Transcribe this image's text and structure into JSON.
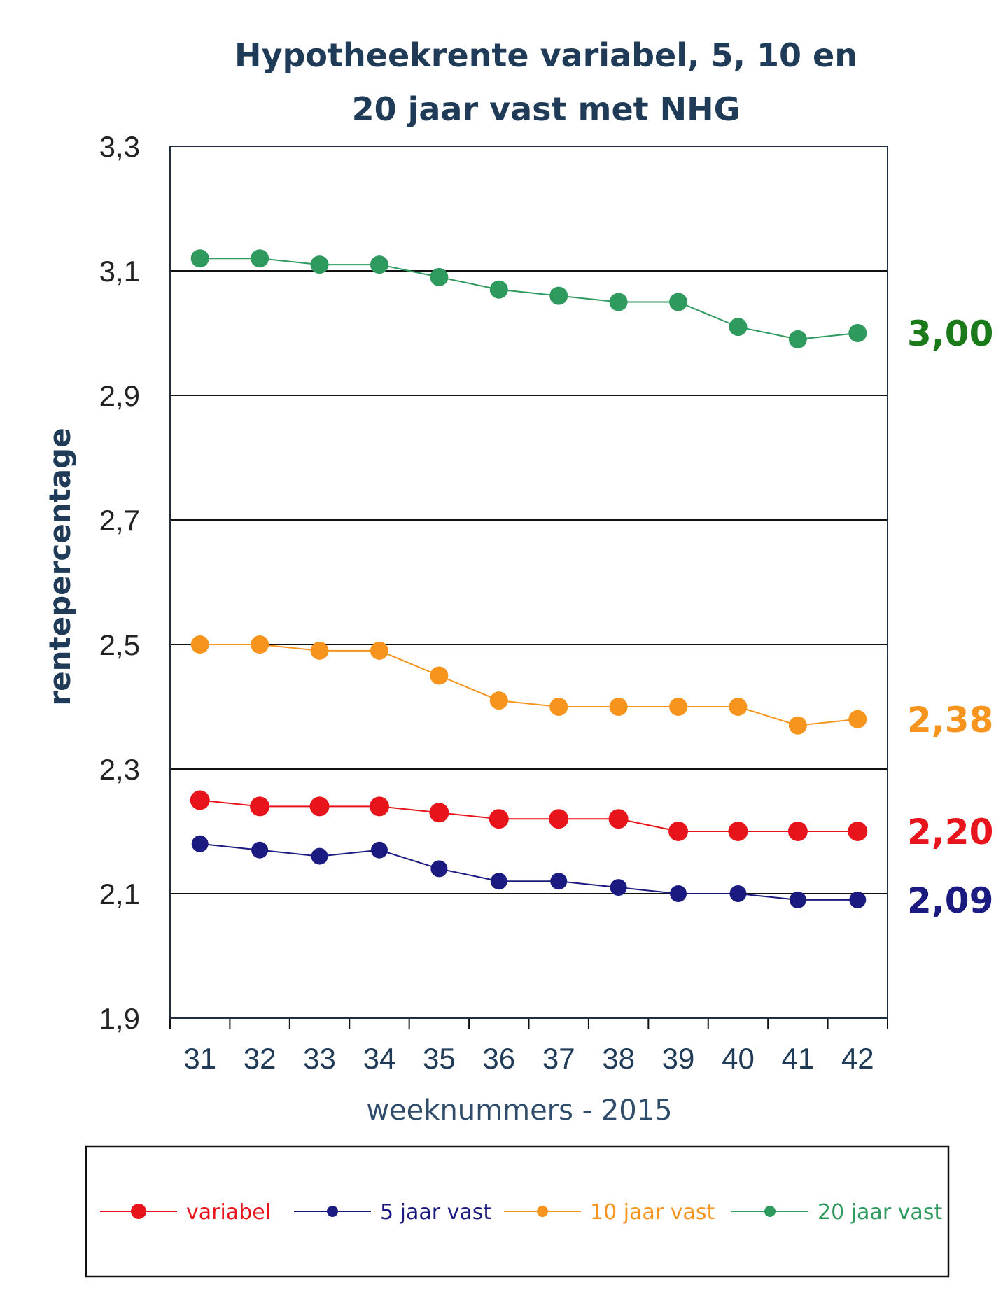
{
  "chart_data": {
    "type": "line",
    "title_line1": "Hypotheekrente variabel, 5, 10 en",
    "title_line2": "20 jaar vast met NHG",
    "xlabel": "weeknummers - 2015",
    "ylabel": "rentepercentage",
    "x": [
      31,
      32,
      33,
      34,
      35,
      36,
      37,
      38,
      39,
      40,
      41,
      42
    ],
    "ylim": [
      1.9,
      3.3
    ],
    "yticks": [
      "3,3",
      "3,1",
      "2,9",
      "2,7",
      "2,5",
      "2,3",
      "2,1",
      "1,9"
    ],
    "ytick_values": [
      3.3,
      3.1,
      2.9,
      2.7,
      2.5,
      2.3,
      2.1,
      1.9
    ],
    "grid": true,
    "legend_position": "bottom",
    "series": [
      {
        "name": "variabel",
        "color": "#e8141c",
        "values": [
          2.25,
          2.24,
          2.24,
          2.24,
          2.23,
          2.22,
          2.22,
          2.22,
          2.2,
          2.2,
          2.2,
          2.2
        ],
        "end_label": "2,20"
      },
      {
        "name": "5 jaar vast",
        "color": "#1a1a80",
        "values": [
          2.18,
          2.17,
          2.16,
          2.17,
          2.14,
          2.12,
          2.12,
          2.11,
          2.1,
          2.1,
          2.09,
          2.09
        ],
        "end_label": "2,09"
      },
      {
        "name": "10 jaar vast",
        "color": "#f7941d",
        "values": [
          2.5,
          2.5,
          2.49,
          2.49,
          2.45,
          2.41,
          2.4,
          2.4,
          2.4,
          2.4,
          2.37,
          2.38
        ],
        "end_label": "2,38"
      },
      {
        "name": "20 jaar vast",
        "color": "#2e9a5e",
        "values": [
          3.12,
          3.12,
          3.11,
          3.11,
          3.09,
          3.07,
          3.06,
          3.05,
          3.05,
          3.01,
          2.99,
          3.0
        ],
        "end_label": "3,00"
      }
    ],
    "end_label_colors": {
      "variabel": "#e8141c",
      "5 jaar vast": "#1a1a80",
      "10 jaar vast": "#f7941d",
      "20 jaar vast": "#1a7a1a"
    }
  }
}
